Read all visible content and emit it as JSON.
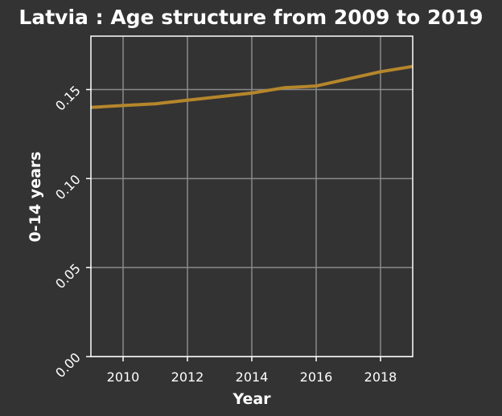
{
  "chart_data": {
    "type": "line",
    "title": "Latvia : Age structure from 2009 to 2019",
    "xlabel": "Year",
    "ylabel": "0-14 years",
    "xlim": [
      2009,
      2019
    ],
    "ylim": [
      0,
      0.18
    ],
    "x_ticks": [
      2010,
      2012,
      2014,
      2016,
      2018
    ],
    "x_tick_labels": [
      "2010",
      "2012",
      "2014",
      "2016",
      "2018"
    ],
    "y_ticks": [
      0,
      0.05,
      0.1,
      0.15
    ],
    "y_tick_labels": [
      "0.00",
      "0.05",
      "0.10",
      "0.15"
    ],
    "grid": true,
    "series": [
      {
        "color": "#b5862b",
        "x": [
          2009,
          2010,
          2011,
          2012,
          2013,
          2014,
          2015,
          2016,
          2017,
          2018,
          2019
        ],
        "values": [
          0.14,
          0.141,
          0.142,
          0.144,
          0.146,
          0.148,
          0.151,
          0.152,
          0.156,
          0.16,
          0.163
        ]
      }
    ]
  }
}
